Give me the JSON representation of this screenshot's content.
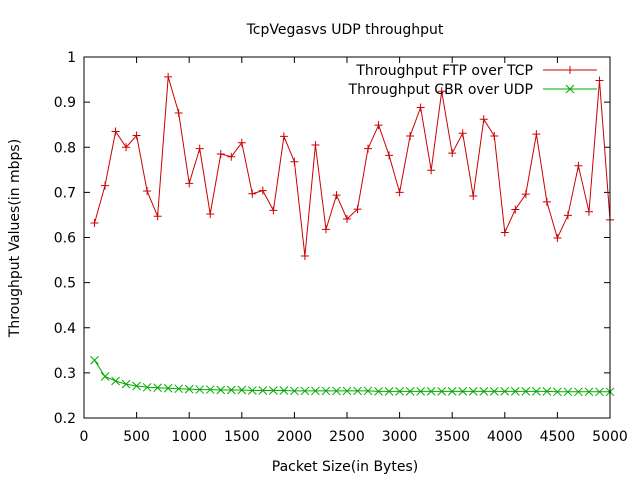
{
  "chart_data": {
    "type": "line",
    "title": "TcpVegasvs UDP throughput",
    "xlabel": "Packet Size(in Bytes)",
    "ylabel": "Throughput Values(in mbps)",
    "xlim": [
      0,
      5000
    ],
    "ylim": [
      0.2,
      1.0
    ],
    "xticks": [
      "0",
      "500",
      "1000",
      "1500",
      "2000",
      "2500",
      "3000",
      "3500",
      "4000",
      "4500",
      "5000"
    ],
    "yticks": [
      "0.2",
      "0.3",
      "0.4",
      "0.5",
      "0.6",
      "0.7",
      "0.8",
      "0.9",
      "1"
    ],
    "grid": false,
    "legend_position": "top-right",
    "x": [
      100,
      200,
      300,
      400,
      500,
      600,
      700,
      800,
      900,
      1000,
      1100,
      1200,
      1300,
      1400,
      1500,
      1600,
      1700,
      1800,
      1900,
      2000,
      2100,
      2200,
      2300,
      2400,
      2500,
      2600,
      2700,
      2800,
      2900,
      3000,
      3100,
      3200,
      3300,
      3400,
      3500,
      3600,
      3700,
      3800,
      3900,
      4000,
      4100,
      4200,
      4300,
      4400,
      4500,
      4600,
      4700,
      4800,
      4900,
      5000
    ],
    "series": [
      {
        "name": "Throughput FTP over TCP",
        "color": "#cc0000",
        "marker": "plus",
        "values": [
          0.632,
          0.715,
          0.835,
          0.8,
          0.826,
          0.703,
          0.647,
          0.956,
          0.876,
          0.72,
          0.797,
          0.652,
          0.785,
          0.779,
          0.81,
          0.697,
          0.704,
          0.66,
          0.824,
          0.768,
          0.559,
          0.805,
          0.618,
          0.694,
          0.641,
          0.663,
          0.797,
          0.849,
          0.782,
          0.7,
          0.825,
          0.888,
          0.749,
          0.924,
          0.787,
          0.831,
          0.692,
          0.862,
          0.825,
          0.611,
          0.662,
          0.696,
          0.829,
          0.679,
          0.599,
          0.649,
          0.759,
          0.657,
          0.948,
          0.639
        ]
      },
      {
        "name": "Throughput CBR over UDP",
        "color": "#00aa00",
        "marker": "x",
        "values": [
          0.328,
          0.292,
          0.282,
          0.275,
          0.271,
          0.268,
          0.267,
          0.266,
          0.265,
          0.264,
          0.263,
          0.263,
          0.262,
          0.262,
          0.262,
          0.261,
          0.261,
          0.261,
          0.261,
          0.26,
          0.26,
          0.26,
          0.26,
          0.26,
          0.26,
          0.26,
          0.26,
          0.259,
          0.259,
          0.259,
          0.259,
          0.259,
          0.259,
          0.259,
          0.259,
          0.259,
          0.259,
          0.259,
          0.259,
          0.259,
          0.259,
          0.259,
          0.259,
          0.259,
          0.258,
          0.258,
          0.258,
          0.258,
          0.258,
          0.258
        ]
      }
    ]
  }
}
